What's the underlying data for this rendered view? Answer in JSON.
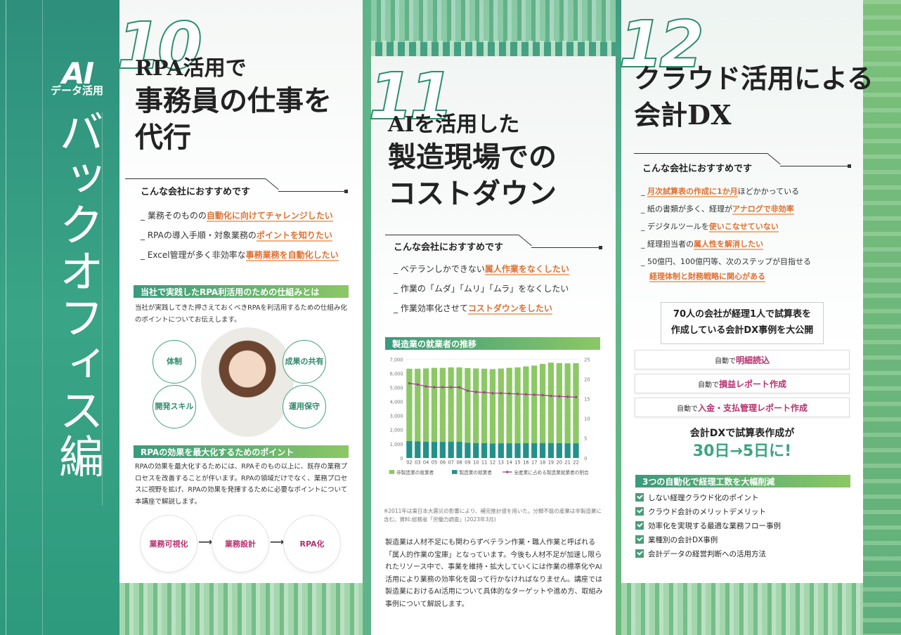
{
  "spine": {
    "ai_mark": "AI",
    "sub": "データ活用",
    "title": "バックオフィス編"
  },
  "section10": {
    "number": "10",
    "title_line1": "RPA活用で",
    "title_line2": "事務員の仕事を",
    "title_line3": "代行",
    "recommend_title": "こんな会社におすすめです",
    "recommend": [
      {
        "pre": "_ 業務そのものの",
        "hl": "自動化に向けてチャレンジしたい"
      },
      {
        "pre": "_ RPAの導入手順・対象業務の",
        "hl": "ポイントを知りたい"
      },
      {
        "pre": "_ Excel管理が多く非効率な",
        "hl": "事務業務を自動化したい"
      }
    ],
    "block1_title": "当社で実践したRPA利活用のための仕組みとは",
    "block1_text": "当社が実践してきた押さえておくべきRPAを利活用するための仕組み化のポイントについてお伝えします。",
    "circles": [
      "体制",
      "成果の共有",
      "開発スキル",
      "運用保守"
    ],
    "block2_title": "RPAの効果を最大化するためのポイント",
    "block2_text": "RPAの効果を最大化するためには、RPAそのもの以上に、既存の業務プロセスを改善することが伴います。RPAの領域だけでなく、業務プロセスに視野を拡げ、RPAの効果を発揮するために必要なポイントについて本講座で解説します。",
    "steps": [
      "業務可視化",
      "業務設計",
      "RPA化"
    ]
  },
  "section11": {
    "number": "11",
    "title_line1": "AIを活用した",
    "title_line2": "製造現場での",
    "title_line3": "コストダウン",
    "recommend_title": "こんな会社におすすめです",
    "recommend": [
      {
        "pre": "_ ベテランしかできない",
        "hl": "属人作業をなくしたい"
      },
      {
        "pre": "_ 作業の「ムダ」「ムリ」「ムラ」をなくしたい",
        "hl": ""
      },
      {
        "pre": "_ 作業効率化させて",
        "hl": "コストダウンをしたい"
      }
    ],
    "chart_title": "製造業の就業者の推移",
    "note": "※2011年は東日本大震災の影響により、補完推計値を用いた。分類不能の産業は非製造業に含む。資料:総務省「労働力調査」(2023年3月)",
    "body": "製造業は人材不足にも関わらずベテラン作業・職人作業と呼ばれる「属人的作業の宝庫」となっています。今後も人材不足が加速し限られたリソース中で、事業を維持・拡大していくには作業の標準化やAI活用により業務の効率化を図って行かなければなりません。講座では製造業におけるAI活用について具体的なターゲットや進め方、取組み事例について解説します。"
  },
  "chart_data": {
    "type": "bar",
    "title": "製造業の就業者の推移",
    "categories": [
      "02",
      "03",
      "04",
      "05",
      "06",
      "07",
      "08",
      "09",
      "10",
      "11",
      "12",
      "13",
      "14",
      "15",
      "16",
      "17",
      "18",
      "19",
      "20",
      "21",
      "22"
    ],
    "series": [
      {
        "name": "非製造業の就業者",
        "values": [
          5130,
          5150,
          5200,
          5250,
          5250,
          5270,
          5270,
          5290,
          5290,
          5280,
          5270,
          5300,
          5350,
          5380,
          5440,
          5500,
          5610,
          5700,
          5680,
          5670,
          5680
        ]
      },
      {
        "name": "製造業の就業者",
        "values": [
          1200,
          1180,
          1150,
          1140,
          1140,
          1150,
          1150,
          1080,
          1060,
          1050,
          1030,
          1040,
          1040,
          1040,
          1050,
          1050,
          1060,
          1060,
          1050,
          1040,
          1040
        ]
      },
      {
        "name": "全産業に占める製造業就業者の割合",
        "values": [
          18.9,
          18.6,
          18.1,
          17.9,
          17.9,
          17.9,
          17.9,
          17.0,
          16.7,
          16.6,
          16.4,
          16.4,
          16.3,
          16.2,
          16.1,
          16.0,
          15.9,
          15.7,
          15.6,
          15.5,
          15.4
        ]
      }
    ],
    "ylim_left": [
      0,
      7000
    ],
    "yticks_left": [
      "0",
      "1,000",
      "2,000",
      "3,000",
      "4,000",
      "5,000",
      "6,000",
      "7,000"
    ],
    "ylim_right": [
      0,
      25
    ],
    "yticks_right": [
      "0",
      "5",
      "10",
      "15",
      "20",
      "25"
    ],
    "colors": [
      "#8cc865",
      "#23918a",
      "#a2478a"
    ]
  },
  "section12": {
    "number": "12",
    "title_line1": "クラウド活用による",
    "title_line2": "会計DX",
    "recommend_title": "こんな会社におすすめです",
    "recommend": [
      {
        "pre": "_ ",
        "hl": "月次試算表の作成に1か月",
        "post": "ほどかかっている"
      },
      {
        "pre": "_ 紙の書類が多く、経理が",
        "hl": "アナログで非効率",
        "post": ""
      },
      {
        "pre": "_ デジタルツールを",
        "hl": "使いこなせていない",
        "post": ""
      },
      {
        "pre": "_ 経理担当者の",
        "hl": "属人性を解消したい",
        "post": ""
      },
      {
        "pre": "_ 50億円、100億円等、次のステップが目指せる",
        "hl": "",
        "post": ""
      },
      {
        "pre": "  ",
        "hl": "経理体制と財務戦略に関心がある",
        "post": ""
      }
    ],
    "case_line1": "70人の会社が経理1人で試算表を",
    "case_line2": "作成している会計DX事例を大公開",
    "auto": [
      {
        "pre": "自動で",
        "hl": "明細読込",
        "post": ""
      },
      {
        "pre": "自動で",
        "hl": "損益レポート作成",
        "post": ""
      },
      {
        "pre": "自動で",
        "hl": "入金・支払管理レポート作成",
        "post": ""
      }
    ],
    "dx_line1": "会計DXで試算表作成が",
    "dx_line2": "30日→5日に!",
    "list_title": "3つの自動化で経理工数を大幅削減",
    "list": [
      "しない経理クラウド化のポイント",
      "クラウド会計のメリットデメリット",
      "効率化を実現する最適な業務フロー事例",
      "業種別の会計DX事例",
      "会計データの経営判断への活用方法"
    ]
  }
}
